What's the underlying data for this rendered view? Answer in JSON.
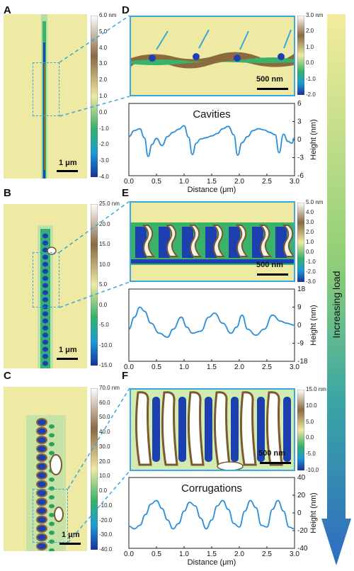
{
  "panels": {
    "A": {
      "label": "A",
      "scale_bar": "1 μm",
      "colorbar_ticks": [
        "6.0 nm",
        "5.0",
        "4.0",
        "3.0",
        "2.0",
        "1.0",
        "0.0",
        "-1.0",
        "-2.0",
        "-3.0",
        "-4.0"
      ]
    },
    "B": {
      "label": "B",
      "scale_bar": "1 μm",
      "colorbar_ticks": [
        "25.0 nm",
        "20.0",
        "15.0",
        "10.0",
        "5.0",
        "0.0",
        "-5.0",
        "-10.0",
        "-15.0"
      ]
    },
    "C": {
      "label": "C",
      "scale_bar": "1 μm",
      "colorbar_ticks": [
        "70.0 nm",
        "60.0",
        "50.0",
        "40.0",
        "30.0",
        "20.0",
        "10.0",
        "0.0",
        "-10.0",
        "-20.0",
        "-30.0",
        "-40.0"
      ]
    },
    "D": {
      "label": "D",
      "scale_bar": "500 nm",
      "colorbar_ticks": [
        "3.0 nm",
        "2.0",
        "1.0",
        "0.0",
        "-1.0",
        "-2.0"
      ]
    },
    "E": {
      "label": "E",
      "scale_bar": "500 nm",
      "colorbar_ticks": [
        "5.0 nm",
        "4.0",
        "3.0",
        "2.0",
        "1.0",
        "0.0",
        "-1.0",
        "-2.0",
        "-3.0"
      ]
    },
    "F": {
      "label": "F",
      "scale_bar": "500 nm",
      "colorbar_ticks": [
        "15.0 nm",
        "10.0",
        "5.0",
        "0.0",
        "-5.0",
        "-10.0"
      ]
    }
  },
  "side_arrow_label": "Increasing load",
  "chart_data": [
    {
      "type": "line",
      "title": "Cavities",
      "xlabel": "Distance (μm)",
      "ylabel": "Height (nm)",
      "xlim": [
        0,
        3
      ],
      "ylim": [
        -6,
        6
      ],
      "xticks": [
        "0.0",
        "0.5",
        "1.0",
        "1.5",
        "2.0",
        "2.5",
        "3.0"
      ],
      "yticks": [
        "6",
        "3",
        "0",
        "-3",
        "-6"
      ],
      "series": [
        {
          "x": [
            0,
            0.1,
            0.2,
            0.28,
            0.35,
            0.42,
            0.5,
            0.6,
            0.7,
            0.8,
            0.9,
            1.0,
            1.08,
            1.15,
            1.22,
            1.3,
            1.4,
            1.5,
            1.6,
            1.7,
            1.8,
            1.9,
            1.97,
            2.05,
            2.15,
            2.25,
            2.35,
            2.45,
            2.55,
            2.65,
            2.72,
            2.8,
            2.88,
            2.95,
            3.0
          ],
          "y": [
            0.5,
            1.5,
            1.8,
            0.3,
            -2.8,
            -0.8,
            0.2,
            -1.0,
            0.5,
            1.2,
            1.7,
            2.3,
            0.4,
            -2.5,
            -0.6,
            0.1,
            0.3,
            0.6,
            1.0,
            1.8,
            2.2,
            0.8,
            -2.6,
            -0.5,
            0.5,
            1.5,
            1.8,
            1.6,
            1.2,
            0.8,
            -2.2,
            0.9,
            -0.3,
            -0.6,
            0.3
          ]
        }
      ]
    },
    {
      "type": "line",
      "title": "",
      "xlabel": "",
      "ylabel": "Height (nm)",
      "xlim": [
        0,
        3
      ],
      "ylim": [
        -18,
        18
      ],
      "xticks": [
        "0.0",
        "0.5",
        "1.0",
        "1.5",
        "2.0",
        "2.5",
        "3.0"
      ],
      "yticks": [
        "18",
        "9",
        "0",
        "-9",
        "-18"
      ],
      "series": [
        {
          "x": [
            0,
            0.1,
            0.2,
            0.28,
            0.4,
            0.55,
            0.7,
            0.8,
            0.95,
            1.05,
            1.15,
            1.3,
            1.45,
            1.55,
            1.7,
            1.85,
            1.95,
            2.05,
            2.15,
            2.3,
            2.45,
            2.6,
            2.75,
            2.85,
            3.0
          ],
          "y": [
            -2,
            4,
            9,
            7,
            1,
            -4,
            -6,
            -2,
            4,
            -1,
            -4,
            -3,
            4,
            6,
            1,
            -4,
            -1,
            5,
            -2,
            -5,
            -2,
            5,
            2,
            1,
            0
          ]
        }
      ]
    },
    {
      "type": "line",
      "title": "Corrugations",
      "xlabel": "Distance (μm)",
      "ylabel": "Height (nm)",
      "xlim": [
        0,
        3
      ],
      "ylim": [
        -40,
        40
      ],
      "xticks": [
        "0.0",
        "0.5",
        "1.0",
        "1.5",
        "2.0",
        "2.5",
        "3.0"
      ],
      "yticks": [
        "40",
        "20",
        "0",
        "-20",
        "-40"
      ],
      "series": [
        {
          "x": [
            0,
            0.1,
            0.2,
            0.3,
            0.4,
            0.5,
            0.6,
            0.7,
            0.8,
            0.9,
            1.0,
            1.1,
            1.2,
            1.3,
            1.4,
            1.5,
            1.6,
            1.7,
            1.8,
            1.9,
            2.0,
            2.1,
            2.2,
            2.3,
            2.4,
            2.5,
            2.6,
            2.7,
            2.8,
            2.9,
            3.0
          ],
          "y": [
            -15,
            -18,
            -14,
            -2,
            10,
            14,
            5,
            -8,
            -18,
            -12,
            2,
            12,
            8,
            -6,
            -18,
            -8,
            8,
            14,
            4,
            -12,
            -16,
            2,
            14,
            6,
            -14,
            -16,
            4,
            14,
            2,
            -16,
            -18
          ]
        }
      ]
    }
  ]
}
